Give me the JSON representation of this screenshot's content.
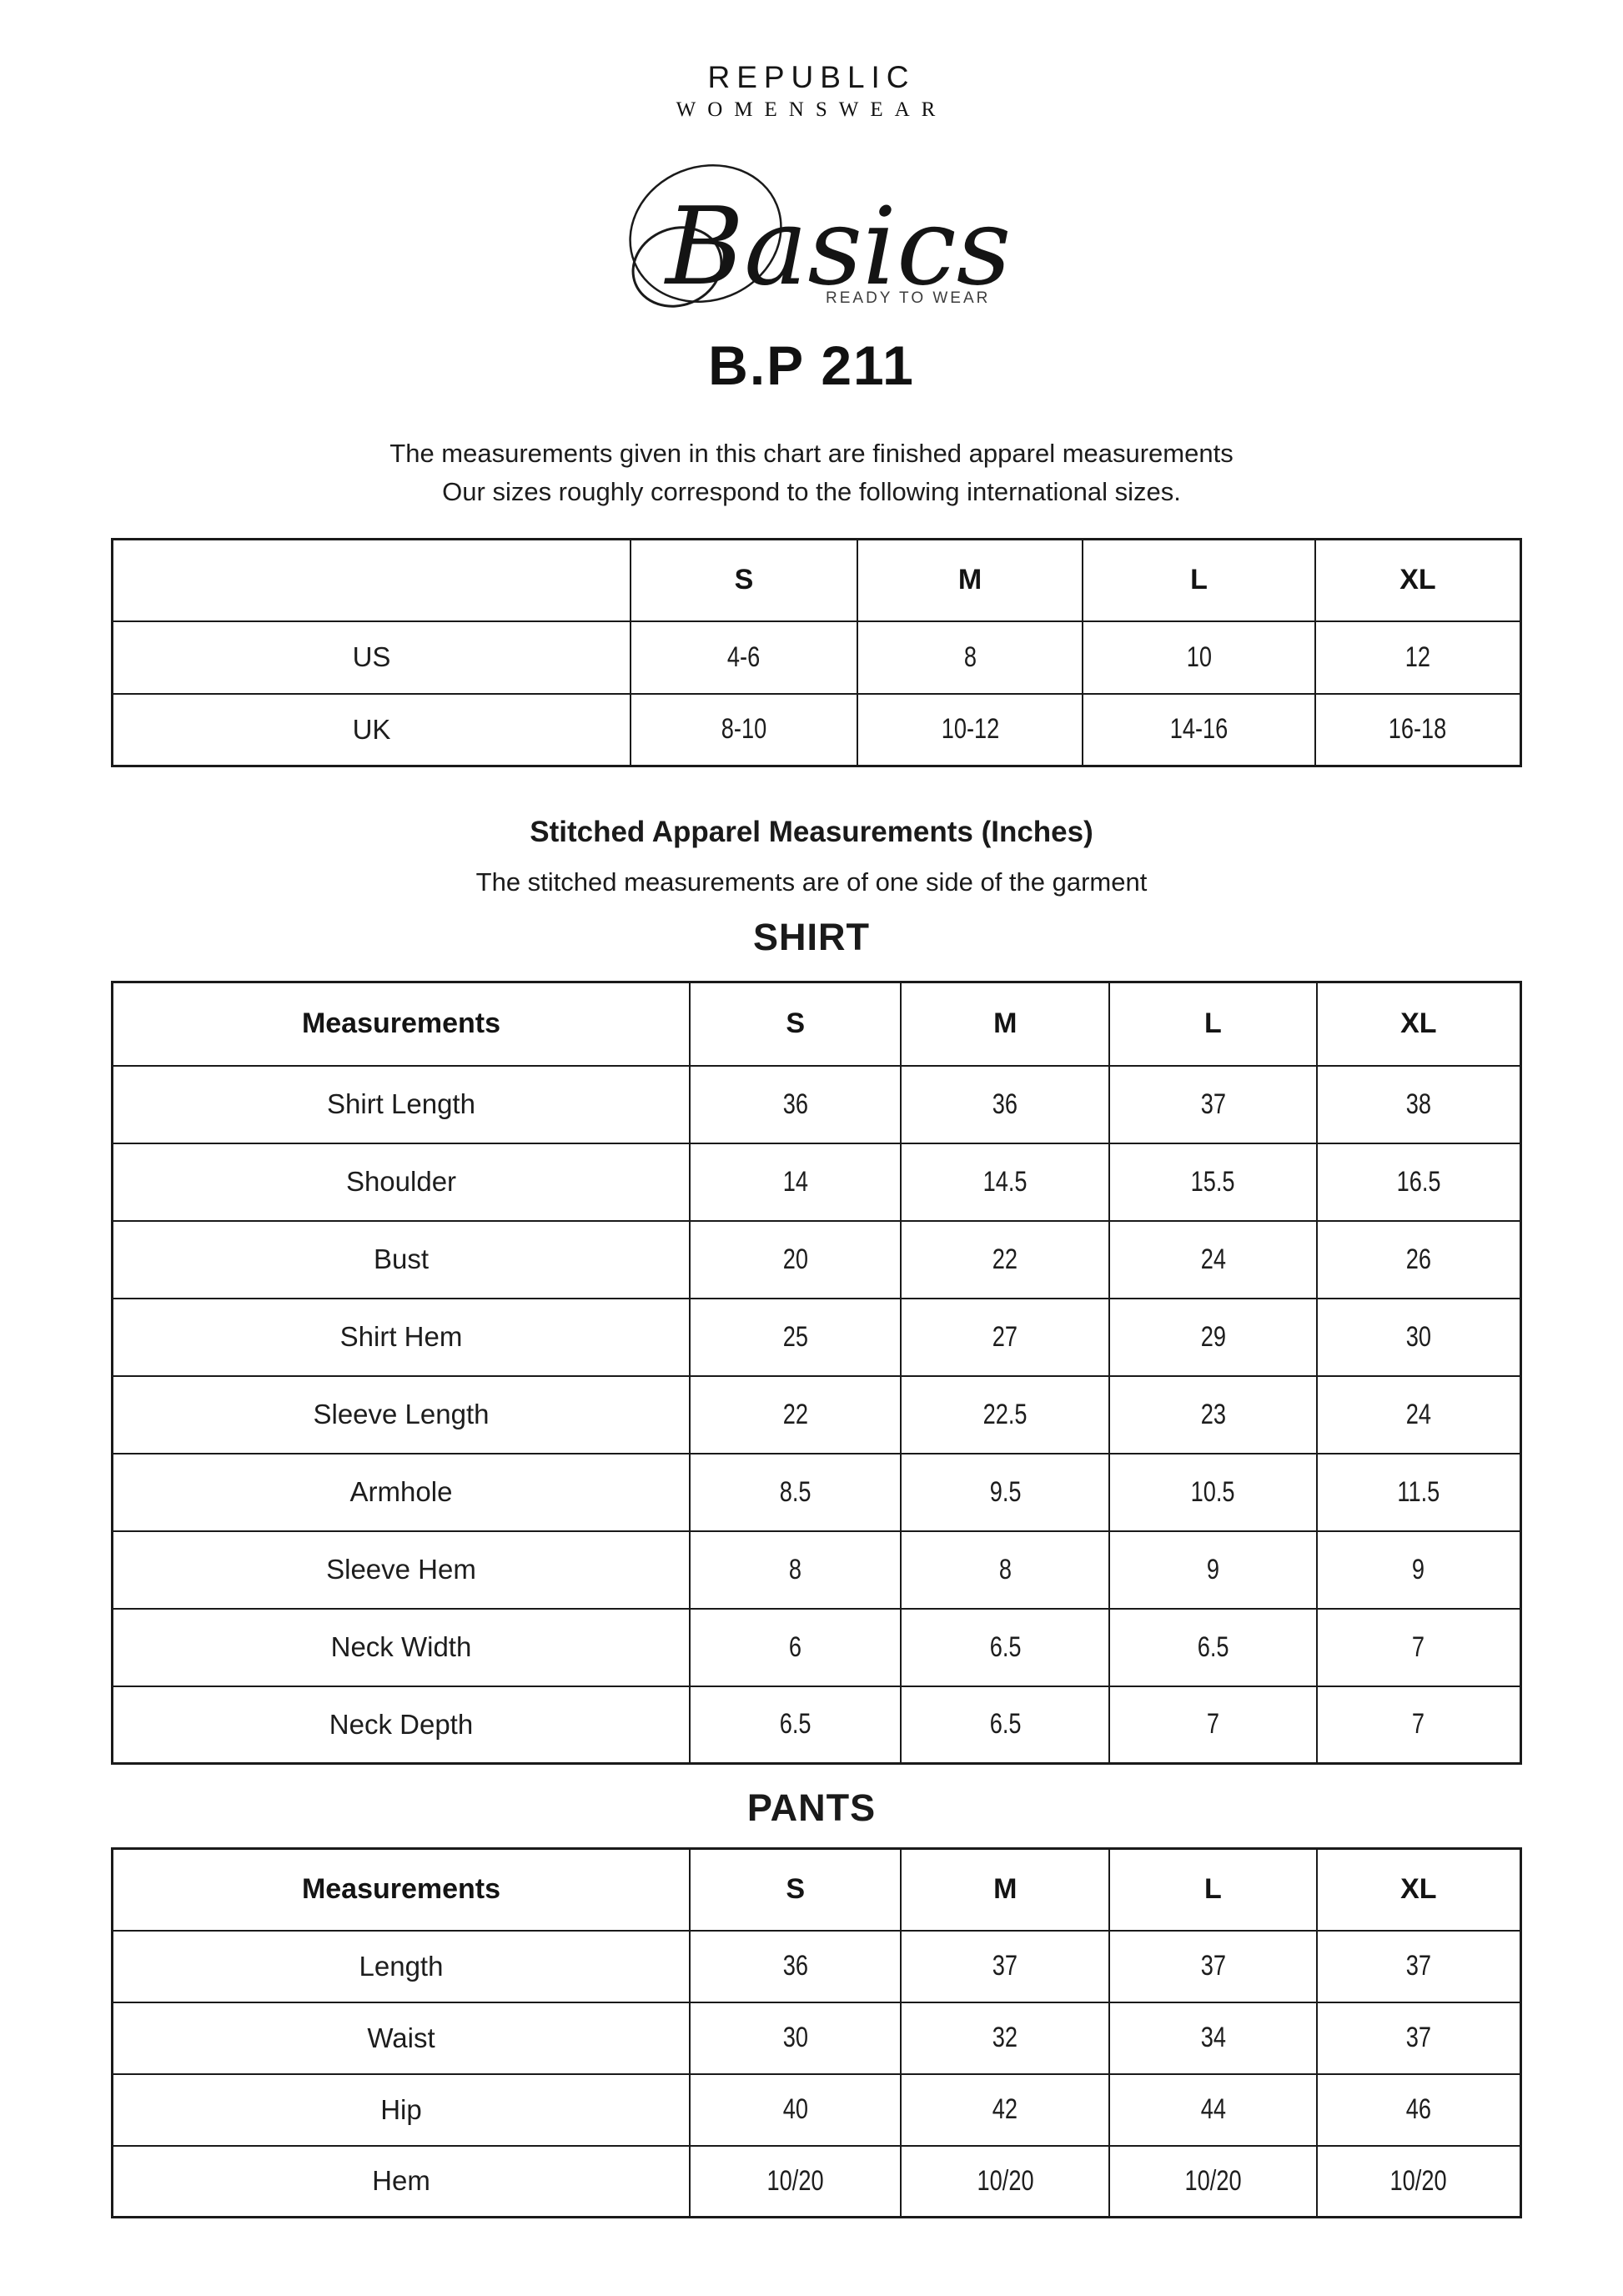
{
  "brand": {
    "name": "REPUBLIC",
    "subtitle": "WOMENSWEAR",
    "script_logo": "Basics",
    "logo_tagline": "READY TO WEAR"
  },
  "product_code": "B.P 211",
  "intro": {
    "line1": "The measurements given in this chart are finished apparel measurements",
    "line2": "Our sizes roughly correspond to the following international sizes."
  },
  "size_conversion_table": {
    "header": [
      "",
      "S",
      "M",
      "L",
      "XL"
    ],
    "rows": [
      {
        "label": "US",
        "values": [
          "4-6",
          "8",
          "10",
          "12"
        ]
      },
      {
        "label": "UK",
        "values": [
          "8-10",
          "10-12",
          "14-16",
          "16-18"
        ]
      }
    ]
  },
  "stitched_section": {
    "title": "Stitched Apparel Measurements (Inches)",
    "subtitle": "The stitched measurements are of one side of the garment"
  },
  "shirt_table": {
    "title": "SHIRT",
    "header": [
      "Measurements",
      "S",
      "M",
      "L",
      "XL"
    ],
    "rows": [
      {
        "label": "Shirt Length",
        "values": [
          "36",
          "36",
          "37",
          "38"
        ]
      },
      {
        "label": "Shoulder",
        "values": [
          "14",
          "14.5",
          "15.5",
          "16.5"
        ]
      },
      {
        "label": "Bust",
        "values": [
          "20",
          "22",
          "24",
          "26"
        ]
      },
      {
        "label": "Shirt Hem",
        "values": [
          "25",
          "27",
          "29",
          "30"
        ]
      },
      {
        "label": "Sleeve Length",
        "values": [
          "22",
          "22.5",
          "23",
          "24"
        ]
      },
      {
        "label": "Armhole",
        "values": [
          "8.5",
          "9.5",
          "10.5",
          "11.5"
        ]
      },
      {
        "label": "Sleeve Hem",
        "values": [
          "8",
          "8",
          "9",
          "9"
        ]
      },
      {
        "label": "Neck Width",
        "values": [
          "6",
          "6.5",
          "6.5",
          "7"
        ]
      },
      {
        "label": "Neck Depth",
        "values": [
          "6.5",
          "6.5",
          "7",
          "7"
        ]
      }
    ]
  },
  "pants_table": {
    "title": "PANTS",
    "header": [
      "Measurements",
      "S",
      "M",
      "L",
      "XL"
    ],
    "rows": [
      {
        "label": "Length",
        "values": [
          "36",
          "37",
          "37",
          "37"
        ]
      },
      {
        "label": "Waist",
        "values": [
          "30",
          "32",
          "34",
          "37"
        ]
      },
      {
        "label": "Hip",
        "values": [
          "40",
          "42",
          "44",
          "46"
        ]
      },
      {
        "label": "Hem",
        "values": [
          "10/20",
          "10/20",
          "10/20",
          "10/20"
        ]
      }
    ]
  },
  "colors": {
    "text": "#1a1a1a",
    "border": "#1a1a1a",
    "background": "#ffffff"
  }
}
